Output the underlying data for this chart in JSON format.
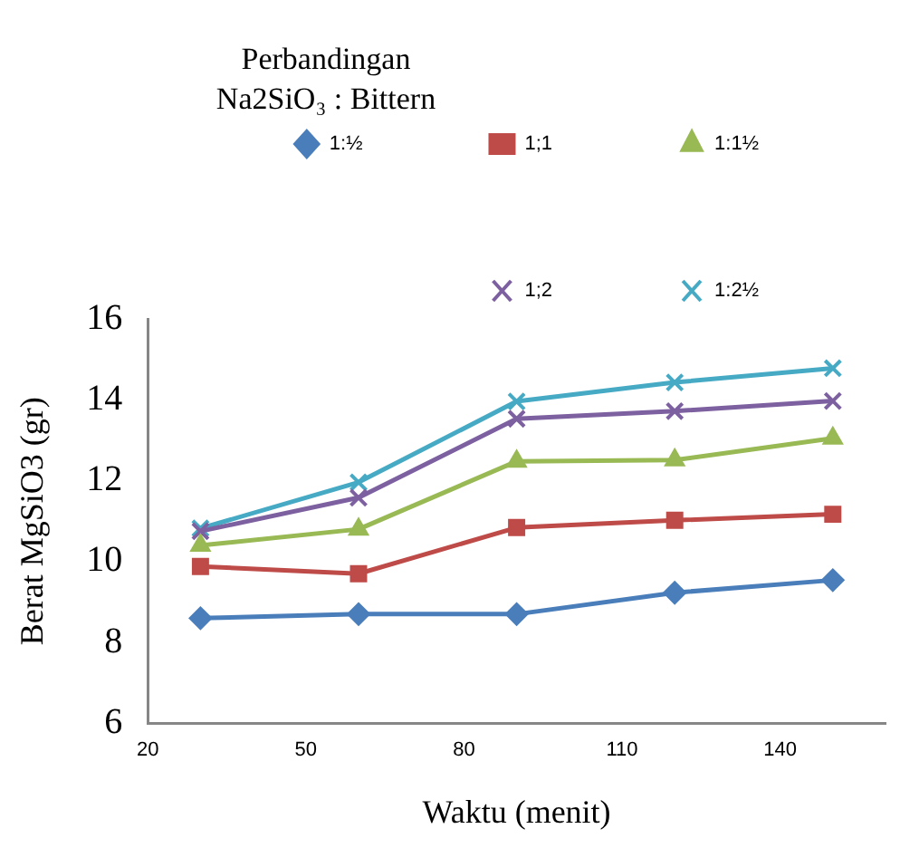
{
  "chart_data": {
    "type": "line",
    "title": "Perbandingan\nNa2SiO₃ : Bittern",
    "xlabel": "Waktu (menit)",
    "ylabel": "Berat MgSiO3 (gr)",
    "x": [
      30,
      60,
      90,
      120,
      150
    ],
    "series": [
      {
        "name": "1:½",
        "color": "#4a7ebb",
        "marker": "diamond",
        "values": [
          8.6,
          8.7,
          8.7,
          9.23,
          9.54
        ]
      },
      {
        "name": "1;1",
        "color": "#be4b48",
        "marker": "square",
        "values": [
          9.88,
          9.7,
          10.84,
          11.02,
          11.17
        ]
      },
      {
        "name": "1:1½",
        "color": "#98b954",
        "marker": "triangle",
        "values": [
          10.4,
          10.8,
          12.48,
          12.51,
          13.05
        ]
      },
      {
        "name": "1;2",
        "color": "#7d60a0",
        "marker": "cross",
        "values": [
          10.75,
          11.58,
          13.53,
          13.72,
          13.97
        ]
      },
      {
        "name": "1:2½",
        "color": "#46aac5",
        "marker": "cross",
        "values": [
          10.82,
          11.96,
          13.96,
          14.43,
          14.78
        ]
      }
    ],
    "xlim": [
      20,
      160
    ],
    "xticks": [
      20,
      50,
      80,
      110,
      140
    ],
    "ylim": [
      6,
      16
    ],
    "yticks": [
      6,
      8,
      10,
      12,
      14,
      16
    ],
    "grid": false,
    "legend": "top right",
    "line_style": "solid"
  }
}
